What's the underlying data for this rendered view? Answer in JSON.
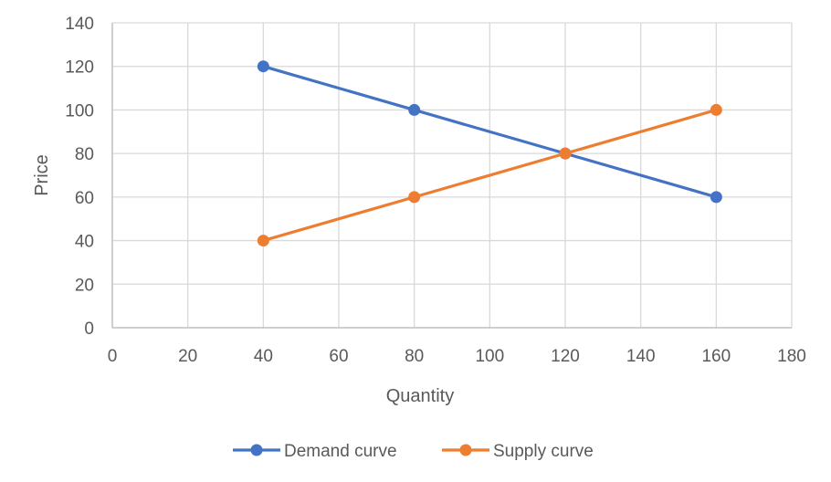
{
  "chart_data": {
    "type": "scatter",
    "xlabel": "Quantity",
    "ylabel": "Price",
    "xlim": [
      0,
      180
    ],
    "ylim": [
      0,
      140
    ],
    "x_ticks": [
      0,
      20,
      40,
      60,
      80,
      100,
      120,
      140,
      160,
      180
    ],
    "y_ticks": [
      0,
      20,
      40,
      60,
      80,
      100,
      120,
      140
    ],
    "grid": true,
    "legend_position": "bottom",
    "series": [
      {
        "name": "Demand curve",
        "color": "#4472C4",
        "points": [
          [
            40,
            120
          ],
          [
            80,
            100
          ],
          [
            120,
            80
          ],
          [
            160,
            60
          ]
        ]
      },
      {
        "name": "Supply curve",
        "color": "#ED7D31",
        "points": [
          [
            40,
            40
          ],
          [
            80,
            60
          ],
          [
            120,
            80
          ],
          [
            160,
            100
          ]
        ]
      }
    ]
  }
}
